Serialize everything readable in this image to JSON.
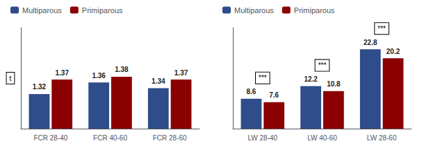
{
  "chart_data": [
    {
      "type": "bar",
      "categories": [
        "FCR 28-40",
        "FCR 40-60",
        "FCR 28-60"
      ],
      "series": [
        {
          "name": "Multiparous",
          "color": "#2E4D8A",
          "values": [
            1.32,
            1.36,
            1.34
          ]
        },
        {
          "name": "Primiparous",
          "color": "#8B0000",
          "values": [
            1.37,
            1.38,
            1.37
          ]
        }
      ],
      "ylim": [
        1.2,
        1.55
      ],
      "tick_labels": "x",
      "grid": false,
      "legend": "upper left",
      "data_labels": true,
      "annotations": [
        {
          "text": "t"
        }
      ]
    },
    {
      "type": "bar",
      "categories": [
        "LW 28-40",
        "LW 40-60",
        "LW 28-60"
      ],
      "series": [
        {
          "name": "Multiparous",
          "color": "#2E4D8A",
          "values": [
            8.6,
            12.2,
            22.8
          ]
        },
        {
          "name": "Primiparous",
          "color": "#8B0000",
          "values": [
            7.6,
            10.8,
            20.2
          ]
        }
      ],
      "ylim": [
        0,
        29
      ],
      "tick_labels": "x",
      "grid": false,
      "legend": "upper left",
      "data_labels": true,
      "annotations": [
        {
          "text": "***",
          "category": "LW 28-40"
        },
        {
          "text": "***",
          "category": "LW 40-60"
        },
        {
          "text": "***",
          "category": "LW 28-60"
        }
      ]
    }
  ]
}
